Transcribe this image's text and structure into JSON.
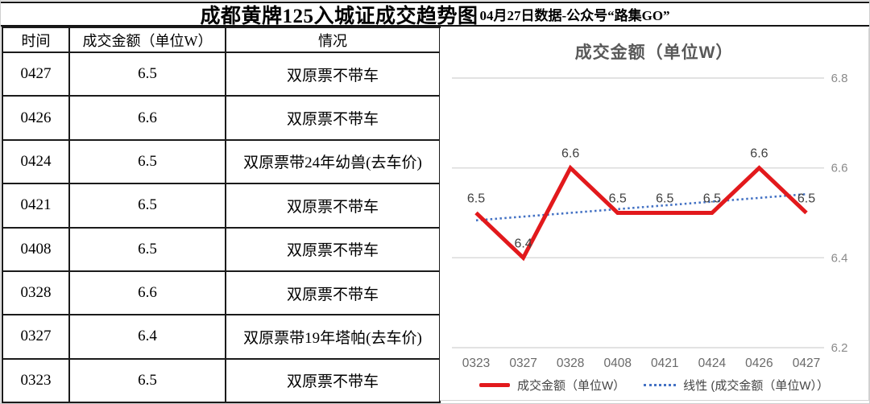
{
  "header": {
    "title": "成都黄牌125入城证成交趋势图",
    "subtitle": "04月27日数据-公众号“路集GO”"
  },
  "table": {
    "columns": [
      "时间",
      "成交金额（单位W）",
      "情况"
    ],
    "rows": [
      {
        "time": "0427",
        "amount": "6.5",
        "note": "双原票不带车"
      },
      {
        "time": "0426",
        "amount": "6.6",
        "note": "双原票不带车"
      },
      {
        "time": "0424",
        "amount": "6.5",
        "note": "双原票带24年幼兽(去车价)"
      },
      {
        "time": "0421",
        "amount": "6.5",
        "note": "双原票不带车"
      },
      {
        "time": "0408",
        "amount": "6.5",
        "note": "双原票不带车"
      },
      {
        "time": "0328",
        "amount": "6.6",
        "note": "双原票不带车"
      },
      {
        "time": "0327",
        "amount": "6.4",
        "note": "双原票带19年塔帕(去车价)"
      },
      {
        "time": "0323",
        "amount": "6.5",
        "note": "双原票不带车"
      }
    ]
  },
  "chart_data": {
    "type": "line",
    "title": "成交金额（单位W）",
    "categories": [
      "0323",
      "0327",
      "0328",
      "0408",
      "0421",
      "0424",
      "0426",
      "0427"
    ],
    "series": [
      {
        "name": "成交金额（单位W）",
        "color": "#e2191c",
        "values": [
          6.5,
          6.4,
          6.6,
          6.5,
          6.5,
          6.5,
          6.6,
          6.5
        ]
      }
    ],
    "trendline": {
      "name": "线性 (成交金额（单位W））",
      "color": "#4472c4",
      "style": "dotted"
    },
    "ylim": [
      6.2,
      6.8
    ],
    "yticks": [
      6.2,
      6.4,
      6.6,
      6.8
    ],
    "grid": true,
    "data_labels": true,
    "legend_position": "bottom"
  },
  "colors": {
    "series_red": "#e2191c",
    "trend_blue": "#4472c4",
    "gridline": "#d9d9d9",
    "ytick_label": "#8a8a8a",
    "xtick_label": "#6a6a6a",
    "data_label": "#404040",
    "chart_title": "#595959",
    "table_border": "#1b1b1b"
  }
}
